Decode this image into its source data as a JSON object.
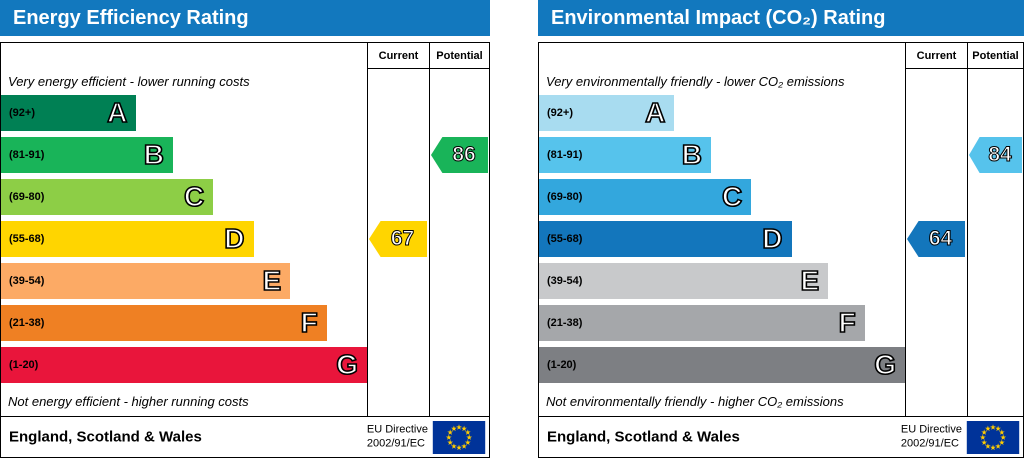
{
  "eu_flag": {
    "bg": "#003399",
    "stars": "#ffcc00"
  },
  "chart_data": [
    {
      "type": "bar",
      "title": "Energy Efficiency Rating",
      "header_bg": "#1278be",
      "header_text_color": "#ffffff",
      "columns": [
        "Current",
        "Potential"
      ],
      "top_note": "Very energy efficient - lower running costs",
      "bottom_note": "Not energy efficient - higher running costs",
      "bands": [
        {
          "range": "(92+)",
          "letter": "A",
          "color": "#008054",
          "width_pct": 37
        },
        {
          "range": "(81-91)",
          "letter": "B",
          "color": "#19b459",
          "width_pct": 47
        },
        {
          "range": "(69-80)",
          "letter": "C",
          "color": "#8dce46",
          "width_pct": 58
        },
        {
          "range": "(55-68)",
          "letter": "D",
          "color": "#ffd500",
          "width_pct": 69
        },
        {
          "range": "(39-54)",
          "letter": "E",
          "color": "#fcaa65",
          "width_pct": 79
        },
        {
          "range": "(21-38)",
          "letter": "F",
          "color": "#ef8023",
          "width_pct": 89
        },
        {
          "range": "(1-20)",
          "letter": "G",
          "color": "#e9153b",
          "width_pct": 100
        }
      ],
      "current": {
        "value": 67,
        "band": "D",
        "color": "#ffd500"
      },
      "potential": {
        "value": 86,
        "band": "B",
        "color": "#19b459"
      },
      "footer": {
        "region": "England, Scotland & Wales",
        "directive": [
          "EU Directive",
          "2002/91/EC"
        ]
      }
    },
    {
      "type": "bar",
      "title": "Environmental Impact (CO₂) Rating",
      "header_bg": "#1278be",
      "header_text_color": "#ffffff",
      "columns": [
        "Current",
        "Potential"
      ],
      "top_note": "Very environmentally friendly - lower CO₂ emissions",
      "bottom_note": "Not environmentally friendly - higher CO₂ emissions",
      "bands": [
        {
          "range": "(92+)",
          "letter": "A",
          "color": "#a8dcf0",
          "width_pct": 37
        },
        {
          "range": "(81-91)",
          "letter": "B",
          "color": "#56c3ec",
          "width_pct": 47
        },
        {
          "range": "(69-80)",
          "letter": "C",
          "color": "#33a7dd",
          "width_pct": 58
        },
        {
          "range": "(55-68)",
          "letter": "D",
          "color": "#1376bc",
          "width_pct": 69
        },
        {
          "range": "(39-54)",
          "letter": "E",
          "color": "#c8c9cb",
          "width_pct": 79
        },
        {
          "range": "(21-38)",
          "letter": "F",
          "color": "#a5a7aa",
          "width_pct": 89
        },
        {
          "range": "(1-20)",
          "letter": "G",
          "color": "#7d7f83",
          "width_pct": 100
        }
      ],
      "current": {
        "value": 64,
        "band": "D",
        "color": "#1376bc"
      },
      "potential": {
        "value": 84,
        "band": "B",
        "color": "#56c3ec"
      },
      "footer": {
        "region": "England, Scotland & Wales",
        "directive": [
          "EU Directive",
          "2002/91/EC"
        ]
      }
    }
  ]
}
